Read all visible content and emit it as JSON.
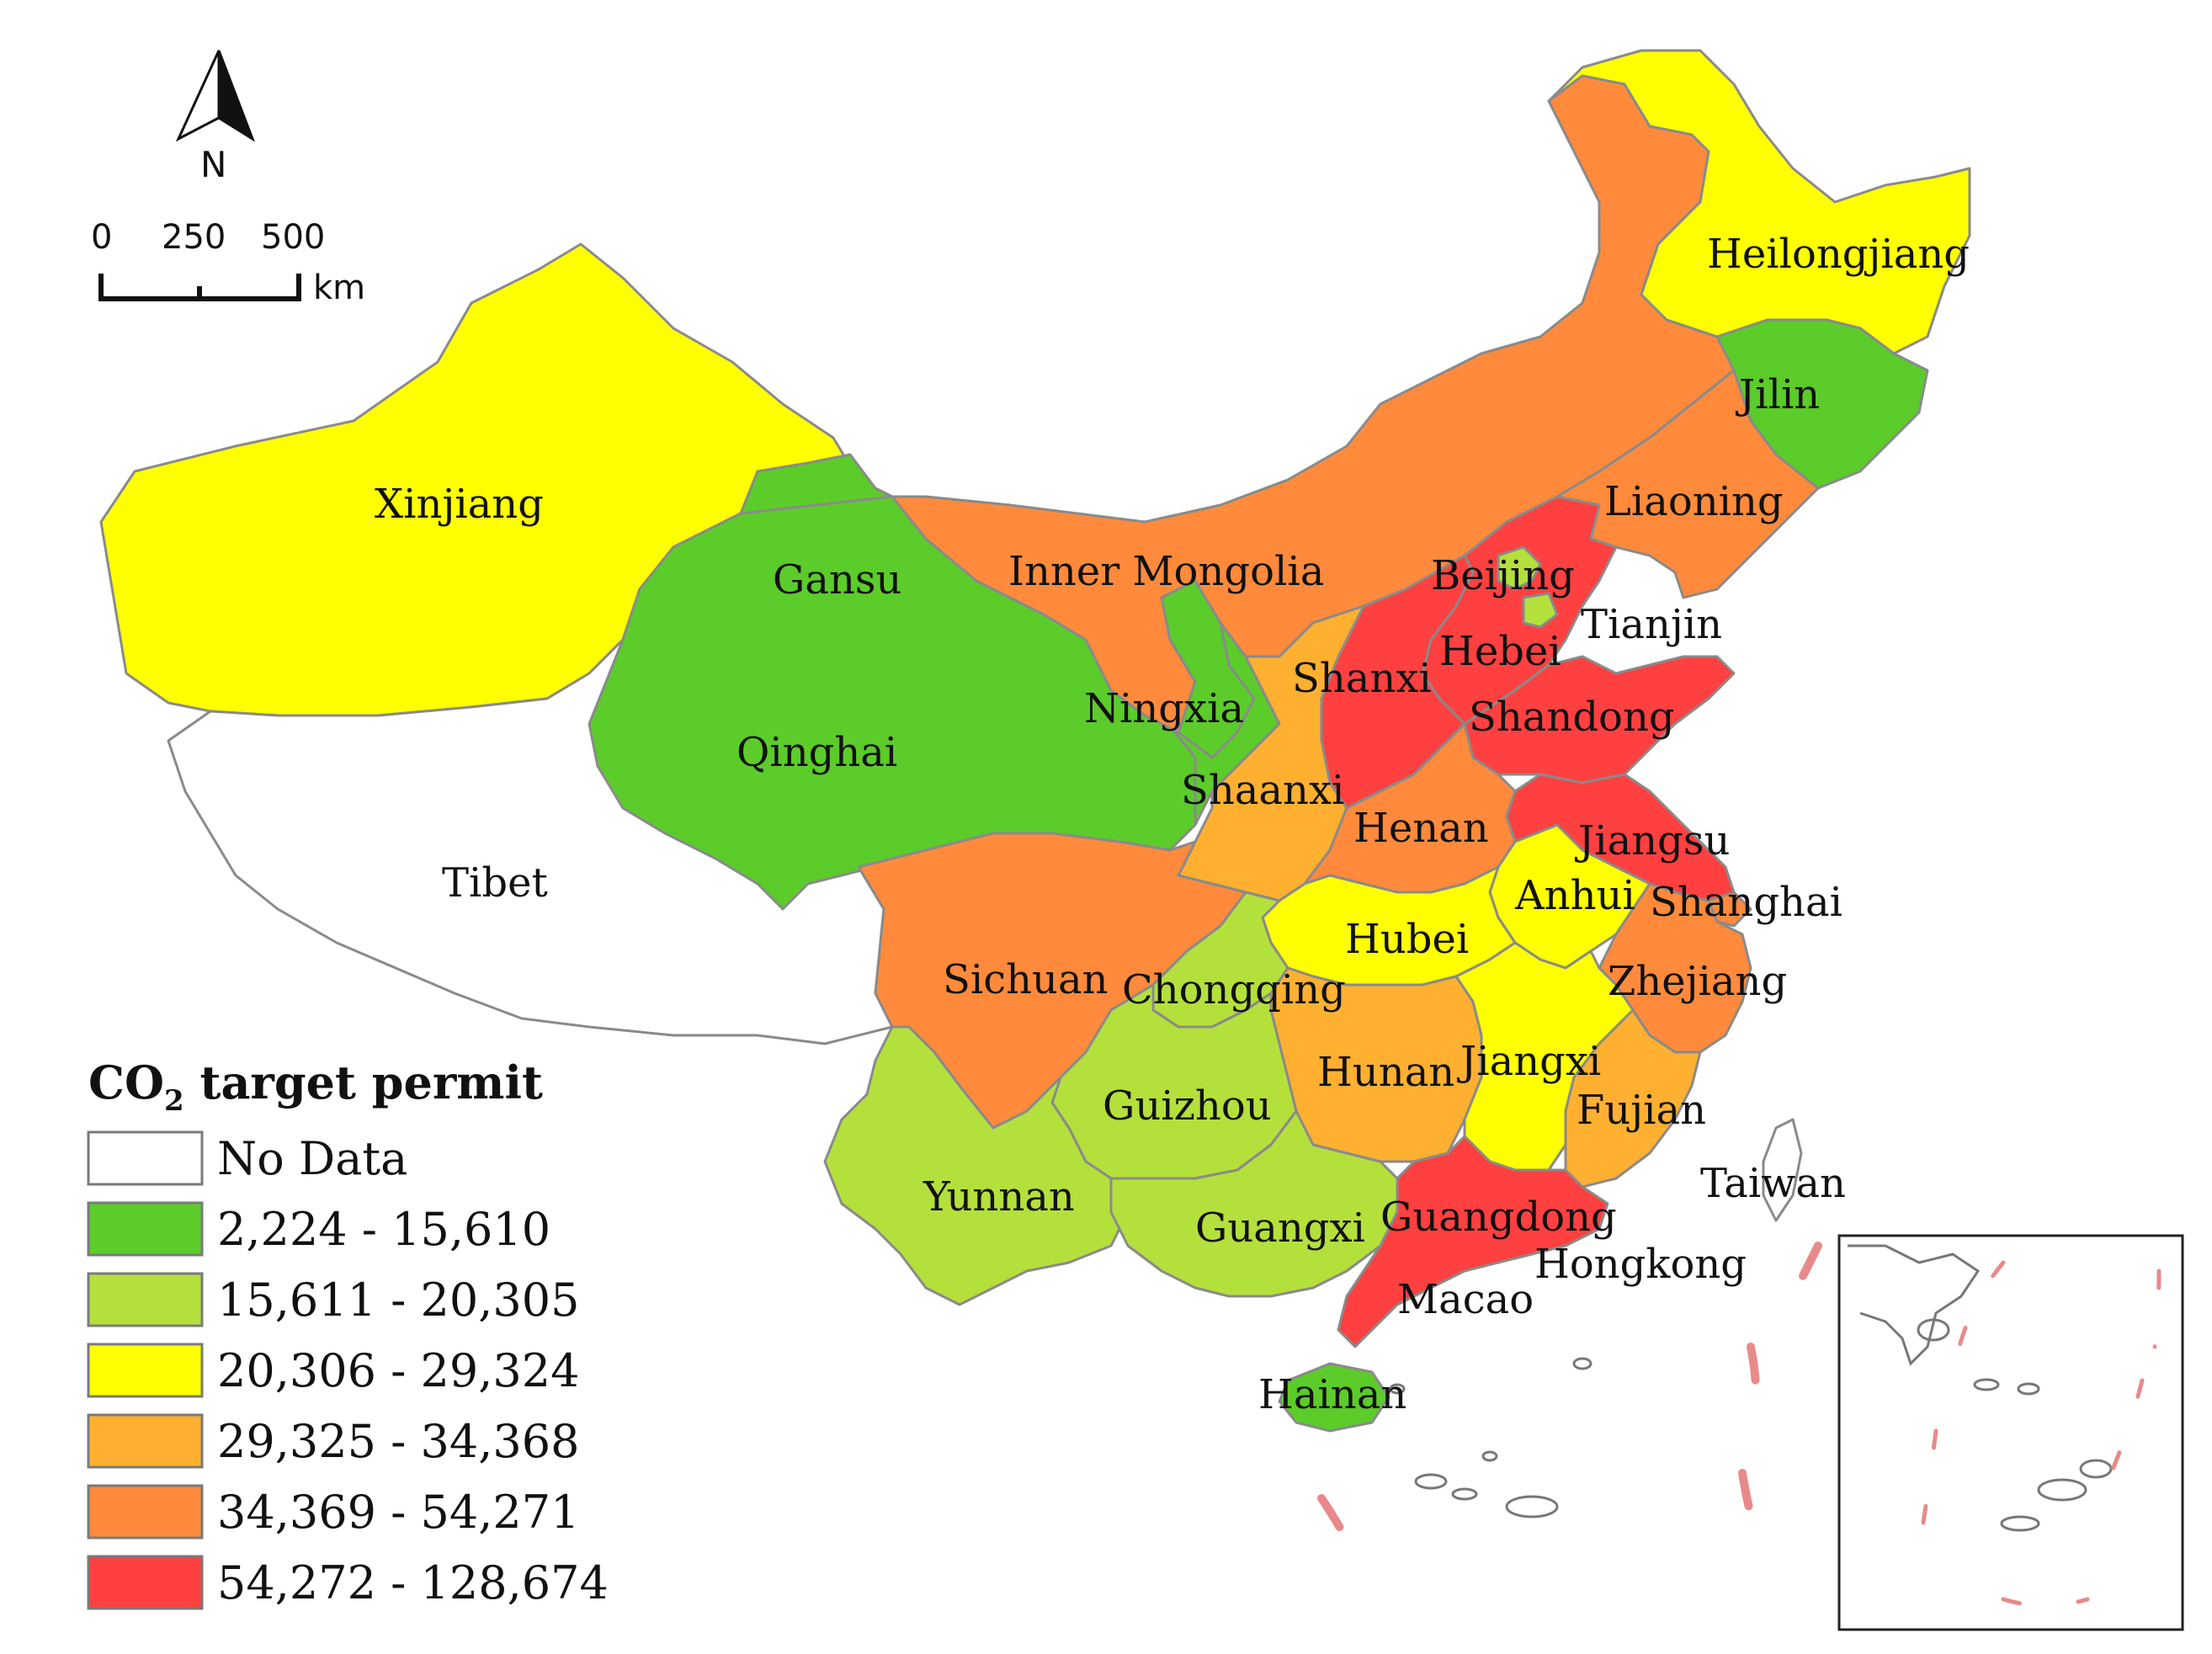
{
  "colors": {
    "no_data": "#ffffff",
    "class1": "#5bcc2a",
    "class2": "#b4e03c",
    "class3": "#ffff00",
    "class4": "#ffb031",
    "class5": "#ff8a3c",
    "class6": "#ff4040",
    "border": "#8a8a8a"
  },
  "north_arrow": {
    "label": "N"
  },
  "scale_bar": {
    "ticks": [
      "0",
      "250",
      "500"
    ],
    "unit": "km"
  },
  "legend": {
    "title_main": "CO",
    "title_sub": "2",
    "title_rest": " target permit",
    "items": [
      {
        "label": "No Data",
        "class": "no_data"
      },
      {
        "label": "2,224 - 15,610",
        "class": "class1"
      },
      {
        "label": "15,611 - 20,305",
        "class": "class2"
      },
      {
        "label": "20,306 - 29,324",
        "class": "class3"
      },
      {
        "label": "29,325 - 34,368",
        "class": "class4"
      },
      {
        "label": "34,369 - 54,271",
        "class": "class5"
      },
      {
        "label": "54,272 - 128,674",
        "class": "class6"
      }
    ]
  },
  "provinces": [
    {
      "name": "Xinjiang",
      "class": "class3"
    },
    {
      "name": "Tibet",
      "class": "no_data"
    },
    {
      "name": "Qinghai",
      "class": "class1"
    },
    {
      "name": "Gansu",
      "class": "class1"
    },
    {
      "name": "Inner Mongolia",
      "class": "class5"
    },
    {
      "name": "Heilongjiang",
      "class": "class3"
    },
    {
      "name": "Jilin",
      "class": "class1"
    },
    {
      "name": "Liaoning",
      "class": "class5"
    },
    {
      "name": "Beijing",
      "class": "class2"
    },
    {
      "name": "Tianjin",
      "class": "class2"
    },
    {
      "name": "Hebei",
      "class": "class6"
    },
    {
      "name": "Shanxi",
      "class": "class6"
    },
    {
      "name": "Shandong",
      "class": "class6"
    },
    {
      "name": "Ningxia",
      "class": "class1"
    },
    {
      "name": "Shaanxi",
      "class": "class4"
    },
    {
      "name": "Henan",
      "class": "class5"
    },
    {
      "name": "Jiangsu",
      "class": "class6"
    },
    {
      "name": "Anhui",
      "class": "class3"
    },
    {
      "name": "Shanghai",
      "class": "class5"
    },
    {
      "name": "Hubei",
      "class": "class3"
    },
    {
      "name": "Sichuan",
      "class": "class5"
    },
    {
      "name": "Chongqing",
      "class": "class2"
    },
    {
      "name": "Zhejiang",
      "class": "class5"
    },
    {
      "name": "Hunan",
      "class": "class4"
    },
    {
      "name": "Jiangxi",
      "class": "class3"
    },
    {
      "name": "Fujian",
      "class": "class4"
    },
    {
      "name": "Guizhou",
      "class": "class2"
    },
    {
      "name": "Yunnan",
      "class": "class2"
    },
    {
      "name": "Guangxi",
      "class": "class2"
    },
    {
      "name": "Guangdong",
      "class": "class6"
    },
    {
      "name": "Hainan",
      "class": "class1"
    },
    {
      "name": "Taiwan",
      "class": "no_data"
    },
    {
      "name": "Hongkong",
      "class": "no_data"
    },
    {
      "name": "Macao",
      "class": "no_data"
    }
  ]
}
